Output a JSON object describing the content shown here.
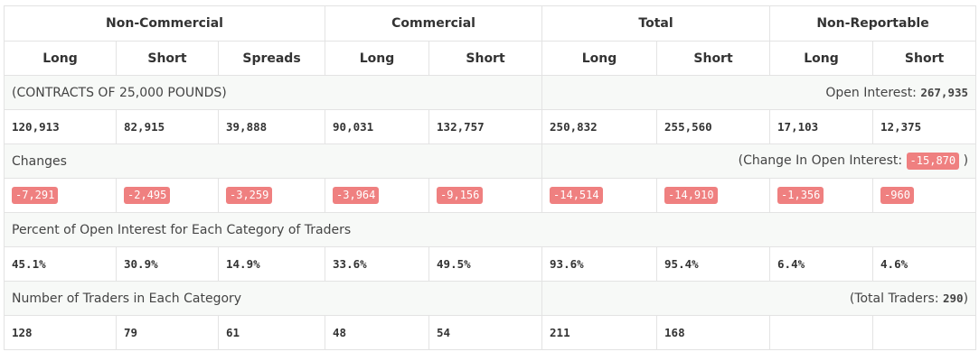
{
  "groups": [
    "Non-Commercial",
    "Commercial",
    "Total",
    "Non-Reportable"
  ],
  "columns": [
    "Long",
    "Short",
    "Spreads",
    "Long",
    "Short",
    "Long",
    "Short",
    "Long",
    "Short"
  ],
  "contracts_label": "(CONTRACTS OF 25,000 POUNDS)",
  "open_interest_label": "Open Interest: ",
  "open_interest_value": "267,935",
  "positions": [
    "120,913",
    "82,915",
    "39,888",
    "90,031",
    "132,757",
    "250,832",
    "255,560",
    "17,103",
    "12,375"
  ],
  "changes_label": "Changes",
  "change_oi_prefix": "(Change In Open Interest: ",
  "change_oi_value": "-15,870",
  "change_oi_suffix": " )",
  "changes": [
    "-7,291",
    "-2,495",
    "-3,259",
    "-3,964",
    "-9,156",
    "-14,514",
    "-14,910",
    "-1,356",
    "-960"
  ],
  "percent_label": "Percent of Open Interest for Each Category of Traders",
  "percents": [
    "45.1%",
    "30.9%",
    "14.9%",
    "33.6%",
    "49.5%",
    "93.6%",
    "95.4%",
    "6.4%",
    "4.6%"
  ],
  "traders_label": "Number of Traders in Each Category",
  "total_traders_prefix": "(Total Traders: ",
  "total_traders_value": "290",
  "total_traders_suffix": ")",
  "traders": [
    "128",
    "79",
    "61",
    "48",
    "54",
    "211",
    "168",
    "",
    ""
  ]
}
